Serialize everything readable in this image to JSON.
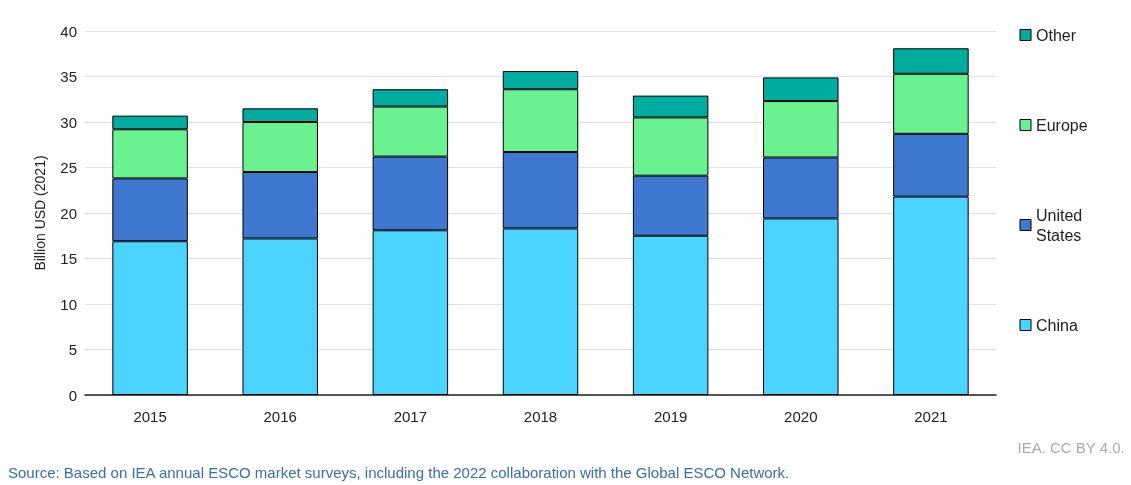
{
  "chart_data": {
    "type": "bar",
    "stacked": true,
    "ylabel": "Billion USD (2021)",
    "categories": [
      "2015",
      "2016",
      "2017",
      "2018",
      "2019",
      "2020",
      "2021"
    ],
    "series": [
      {
        "name": "China",
        "color": "#4ad4ff",
        "values": [
          16.9,
          17.2,
          18.1,
          18.3,
          17.5,
          19.4,
          21.8
        ]
      },
      {
        "name": "United States",
        "color": "#3f78d1",
        "values": [
          6.9,
          7.3,
          8.1,
          8.4,
          6.6,
          6.7,
          6.9
        ]
      },
      {
        "name": "Europe",
        "color": "#69f28f",
        "values": [
          5.4,
          5.5,
          5.5,
          6.9,
          6.4,
          6.2,
          6.6
        ]
      },
      {
        "name": "Other",
        "color": "#00ab9f",
        "values": [
          1.5,
          1.5,
          1.9,
          2.0,
          2.4,
          2.6,
          2.8
        ]
      }
    ],
    "ylim": [
      0,
      40
    ],
    "yticks": [
      0,
      5,
      10,
      15,
      20,
      25,
      30,
      35,
      40
    ],
    "grid": "y",
    "legend": "right",
    "annotations": [
      "IEA. CC BY 4.0.",
      "Source: Based on IEA annual ESCO market surveys, including the 2022 collaboration with the Global ESCO Network."
    ]
  }
}
